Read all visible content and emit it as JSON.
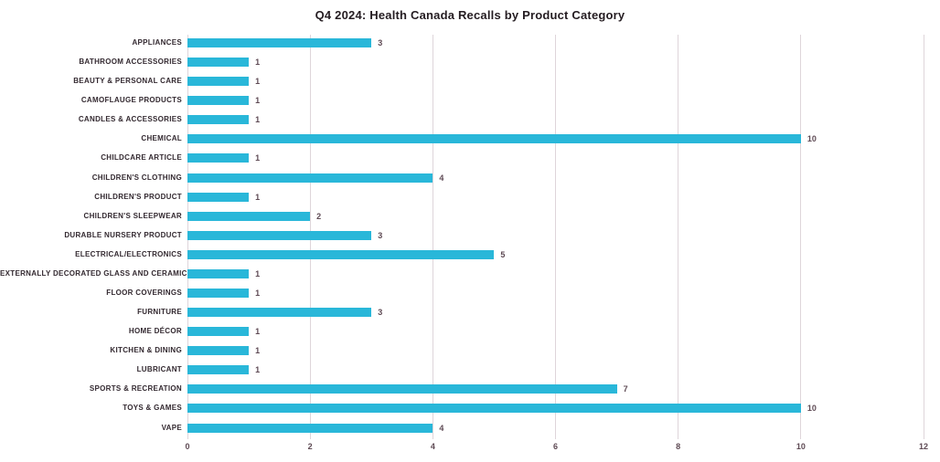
{
  "chart_data": {
    "type": "bar",
    "orientation": "horizontal",
    "title": "Q4 2024: Health Canada Recalls by Product Category",
    "categories": [
      "APPLIANCES",
      "BATHROOM ACCESSORIES",
      "BEAUTY & PERSONAL CARE",
      "CAMOFLAUGE PRODUCTS",
      "CANDLES & ACCESSORIES",
      "CHEMICAL",
      "CHILDCARE ARTICLE",
      "CHILDREN'S CLOTHING",
      "CHILDREN'S PRODUCT",
      "CHILDREN'S SLEEPWEAR",
      "DURABLE NURSERY PRODUCT",
      "ELECTRICAL/ELECTRONICS",
      "EXTERNALLY DECORATED GLASS AND CERAMICS",
      "FLOOR COVERINGS",
      "FURNITURE",
      "HOME DÉCOR",
      "KITCHEN & DINING",
      "LUBRICANT",
      "SPORTS & RECREATION",
      "TOYS & GAMES",
      "VAPE"
    ],
    "values": [
      3,
      1,
      1,
      1,
      1,
      10,
      1,
      4,
      1,
      2,
      3,
      5,
      1,
      1,
      3,
      1,
      1,
      1,
      7,
      10,
      4
    ],
    "data_labels": [
      "3",
      "1",
      "1",
      "1",
      "1",
      "10",
      "1",
      "4",
      "1",
      "2",
      "3",
      "5",
      "1",
      "1",
      "3",
      "1",
      "1",
      "1",
      "7",
      "10",
      "4"
    ],
    "xlabel": "",
    "ylabel": "",
    "xlim": [
      0,
      12
    ],
    "xticks": [
      "0",
      "2",
      "4",
      "6",
      "8",
      "10",
      "12"
    ],
    "xtick_values": [
      0,
      2,
      4,
      6,
      8,
      10,
      12
    ],
    "grid": "vertical gridlines on",
    "legend": "none",
    "colors": {
      "bar": "#29b7d9",
      "gridline": "#ded5da",
      "title_text": "#241c21",
      "category_text": "#332930",
      "value_text": "#5e4a54",
      "tick_text": "#5e4a54",
      "background": "#ffffff"
    }
  }
}
